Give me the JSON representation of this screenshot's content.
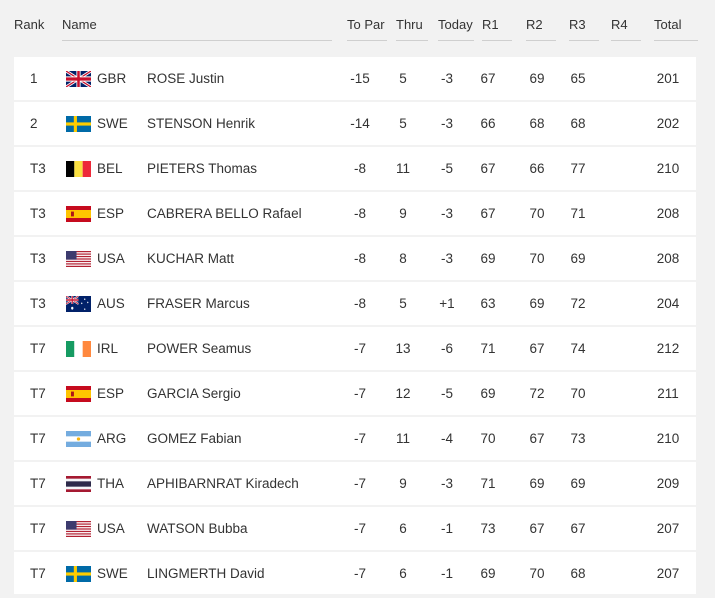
{
  "headers": {
    "rank": "Rank",
    "name": "Name",
    "to_par": "To Par",
    "thru": "Thru",
    "today": "Today",
    "r1": "R1",
    "r2": "R2",
    "r3": "R3",
    "r4": "R4",
    "total": "Total"
  },
  "rows": [
    {
      "rank": "1",
      "flag": "gbr-flag-icon",
      "code": "GBR",
      "name": "ROSE Justin",
      "to_par": "-15",
      "thru": "5",
      "today": "-3",
      "r1": "67",
      "r2": "69",
      "r3": "65",
      "r4": "",
      "total": "201"
    },
    {
      "rank": "2",
      "flag": "swe-flag-icon",
      "code": "SWE",
      "name": "STENSON Henrik",
      "to_par": "-14",
      "thru": "5",
      "today": "-3",
      "r1": "66",
      "r2": "68",
      "r3": "68",
      "r4": "",
      "total": "202"
    },
    {
      "rank": "T3",
      "flag": "bel-flag-icon",
      "code": "BEL",
      "name": "PIETERS Thomas",
      "to_par": "-8",
      "thru": "11",
      "today": "-5",
      "r1": "67",
      "r2": "66",
      "r3": "77",
      "r4": "",
      "total": "210"
    },
    {
      "rank": "T3",
      "flag": "esp-flag-icon",
      "code": "ESP",
      "name": "CABRERA BELLO Rafael",
      "to_par": "-8",
      "thru": "9",
      "today": "-3",
      "r1": "67",
      "r2": "70",
      "r3": "71",
      "r4": "",
      "total": "208"
    },
    {
      "rank": "T3",
      "flag": "usa-flag-icon",
      "code": "USA",
      "name": "KUCHAR Matt",
      "to_par": "-8",
      "thru": "8",
      "today": "-3",
      "r1": "69",
      "r2": "70",
      "r3": "69",
      "r4": "",
      "total": "208"
    },
    {
      "rank": "T3",
      "flag": "aus-flag-icon",
      "code": "AUS",
      "name": "FRASER Marcus",
      "to_par": "-8",
      "thru": "5",
      "today": "+1",
      "r1": "63",
      "r2": "69",
      "r3": "72",
      "r4": "",
      "total": "204"
    },
    {
      "rank": "T7",
      "flag": "irl-flag-icon",
      "code": "IRL",
      "name": "POWER Seamus",
      "to_par": "-7",
      "thru": "13",
      "today": "-6",
      "r1": "71",
      "r2": "67",
      "r3": "74",
      "r4": "",
      "total": "212"
    },
    {
      "rank": "T7",
      "flag": "esp-flag-icon",
      "code": "ESP",
      "name": "GARCIA Sergio",
      "to_par": "-7",
      "thru": "12",
      "today": "-5",
      "r1": "69",
      "r2": "72",
      "r3": "70",
      "r4": "",
      "total": "211"
    },
    {
      "rank": "T7",
      "flag": "arg-flag-icon",
      "code": "ARG",
      "name": "GOMEZ Fabian",
      "to_par": "-7",
      "thru": "11",
      "today": "-4",
      "r1": "70",
      "r2": "67",
      "r3": "73",
      "r4": "",
      "total": "210"
    },
    {
      "rank": "T7",
      "flag": "tha-flag-icon",
      "code": "THA",
      "name": "APHIBARNRAT Kiradech",
      "to_par": "-7",
      "thru": "9",
      "today": "-3",
      "r1": "71",
      "r2": "69",
      "r3": "69",
      "r4": "",
      "total": "209"
    },
    {
      "rank": "T7",
      "flag": "usa-flag-icon",
      "code": "USA",
      "name": "WATSON Bubba",
      "to_par": "-7",
      "thru": "6",
      "today": "-1",
      "r1": "73",
      "r2": "67",
      "r3": "67",
      "r4": "",
      "total": "207"
    },
    {
      "rank": "T7",
      "flag": "swe-flag-icon",
      "code": "SWE",
      "name": "LINGMERTH David",
      "to_par": "-7",
      "thru": "6",
      "today": "-1",
      "r1": "69",
      "r2": "70",
      "r3": "68",
      "r4": "",
      "total": "207"
    }
  ]
}
